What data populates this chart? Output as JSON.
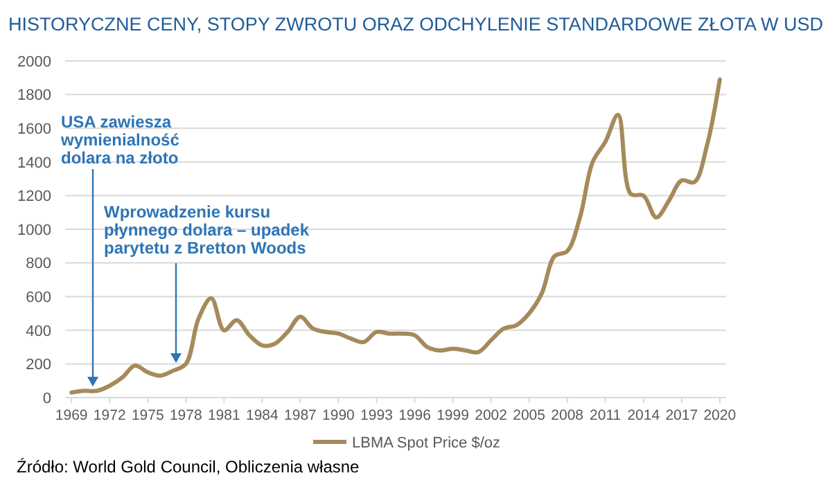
{
  "chart_data": {
    "type": "line",
    "title": "HISTORYCZNE CENY, STOPY ZWROTU ORAZ ODCHYLENIE STANDARDOWE ZŁOTA W USD",
    "x": [
      1969,
      1970,
      1971,
      1972,
      1973,
      1974,
      1975,
      1976,
      1977,
      1978,
      1979,
      1980,
      1981,
      1982,
      1983,
      1984,
      1985,
      1986,
      1987,
      1988,
      1989,
      1990,
      1991,
      1992,
      1993,
      1994,
      1995,
      1996,
      1997,
      1998,
      1999,
      2000,
      2001,
      2002,
      2003,
      2004,
      2005,
      2006,
      2007,
      2008,
      2009,
      2010,
      2011,
      2012,
      2013,
      2014,
      2015,
      2016,
      2017,
      2018,
      2019,
      2020
    ],
    "series": [
      {
        "name": "LBMA Spot Price $/oz",
        "color": "#a68a5b",
        "values": [
          30,
          40,
          40,
          70,
          120,
          190,
          150,
          130,
          160,
          200,
          470,
          590,
          400,
          460,
          370,
          310,
          320,
          390,
          480,
          410,
          390,
          380,
          350,
          330,
          390,
          380,
          380,
          370,
          300,
          280,
          290,
          280,
          270,
          340,
          410,
          430,
          500,
          620,
          840,
          870,
          1070,
          1400,
          1520,
          1680,
          1210,
          1200,
          1070,
          1170,
          1290,
          1280,
          1500,
          1890
        ]
      }
    ],
    "xlim": [
      1968.5,
      2020.5
    ],
    "xticks": [
      1969,
      1972,
      1975,
      1978,
      1981,
      1984,
      1987,
      1990,
      1993,
      1996,
      1999,
      2002,
      2005,
      2008,
      2011,
      2014,
      2017,
      2020
    ],
    "ylim": [
      0,
      2000
    ],
    "yticks": [
      0,
      200,
      400,
      600,
      800,
      1000,
      1200,
      1400,
      1600,
      1800,
      2000
    ],
    "grid": "y",
    "legend": "bottom",
    "marker": "none",
    "annotations": [
      "USA zawiesza\nwymienialność\ndolara na złoto",
      "Wprowadzenie kursu\npłynnego dolara – upadek\nparytetu z Bretton Woods",
      "Źródło: World Gold Council, Obliczenia własne"
    ]
  }
}
